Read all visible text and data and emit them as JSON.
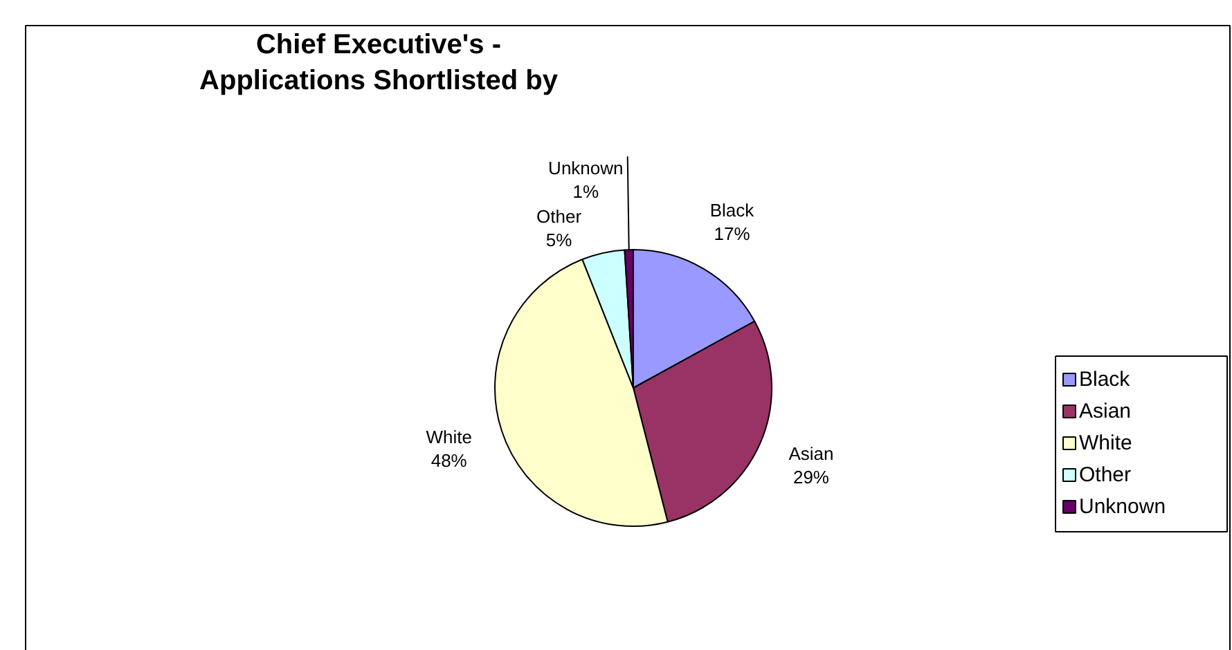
{
  "chart_data": {
    "type": "pie",
    "title": "Chief Executive's - Applications Shortlisted by",
    "categories": [
      "Black",
      "Asian",
      "White",
      "Other",
      "Unknown"
    ],
    "values": [
      17,
      29,
      48,
      5,
      1
    ],
    "colors": [
      "#9999ff",
      "#993366",
      "#ffffcc",
      "#ccffff",
      "#660066"
    ],
    "value_labels": [
      "17%",
      "29%",
      "48%",
      "5%",
      "1%"
    ],
    "legend": "right"
  }
}
